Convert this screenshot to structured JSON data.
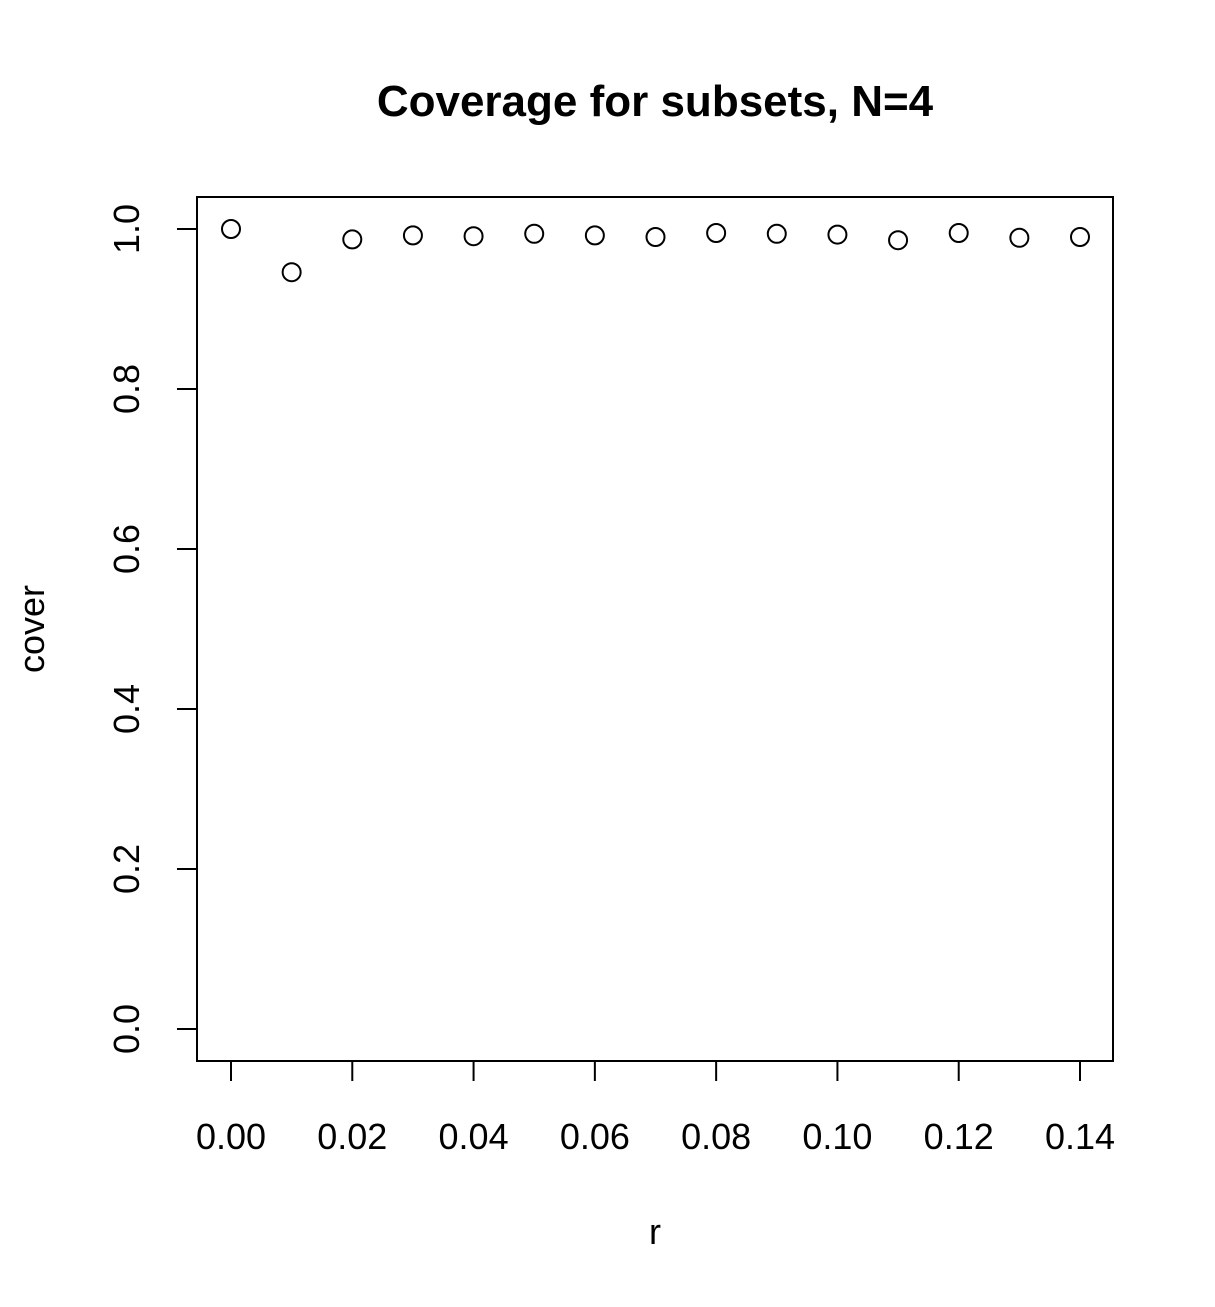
{
  "chart_data": {
    "type": "scatter",
    "title": "Coverage for subsets, N=4",
    "xlabel": "r",
    "ylabel": "cover",
    "xlim": [
      0.0,
      0.14
    ],
    "ylim": [
      0.0,
      1.0
    ],
    "x_ticks": [
      0.0,
      0.02,
      0.04,
      0.06,
      0.08,
      0.1,
      0.12,
      0.14
    ],
    "x_tick_labels": [
      "0.00",
      "0.02",
      "0.04",
      "0.06",
      "0.08",
      "0.10",
      "0.12",
      "0.14"
    ],
    "y_ticks": [
      0.0,
      0.2,
      0.4,
      0.6,
      0.8,
      1.0
    ],
    "y_tick_labels": [
      "0.0",
      "0.2",
      "0.4",
      "0.6",
      "0.8",
      "1.0"
    ],
    "grid": false,
    "point_style": "open-circle",
    "series": [
      {
        "x": [
          0.0,
          0.01,
          0.02,
          0.03,
          0.04,
          0.05,
          0.06,
          0.07,
          0.08,
          0.09,
          0.1,
          0.11,
          0.12,
          0.13,
          0.14
        ],
        "y": [
          1.0,
          0.946,
          0.987,
          0.992,
          0.991,
          0.994,
          0.992,
          0.99,
          0.995,
          0.994,
          0.993,
          0.986,
          0.995,
          0.989,
          0.99
        ]
      }
    ]
  }
}
